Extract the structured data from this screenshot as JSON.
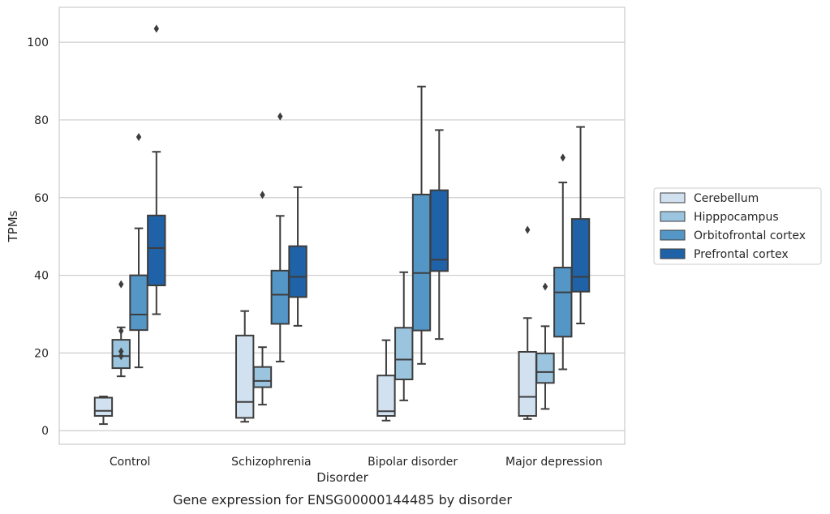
{
  "chart_data": {
    "type": "boxplot",
    "title": "Gene expression for ENSG00000144485 by disorder",
    "xlabel": "Disorder",
    "ylabel": "TPMs",
    "categories": [
      "Control",
      "Schizophrenia",
      "Bipolar disorder",
      "Major depression"
    ],
    "ylim": [
      -3.5,
      109
    ],
    "yticks": [
      0,
      20,
      40,
      60,
      80,
      100
    ],
    "grid": true,
    "legend_position": "right",
    "series": [
      {
        "name": "Cerebellum",
        "color": "#d1e1f0",
        "boxes": [
          {
            "whislo": 1.7,
            "q1": 3.8,
            "med": 5.1,
            "q3": 8.5,
            "whishi": 8.8,
            "fliers": []
          },
          {
            "whislo": 2.3,
            "q1": 3.3,
            "med": 7.4,
            "q3": 24.5,
            "whishi": 30.8,
            "fliers": []
          },
          {
            "whislo": 2.6,
            "q1": 3.8,
            "med": 5.0,
            "q3": 14.2,
            "whishi": 23.3,
            "fliers": []
          },
          {
            "whislo": 3.0,
            "q1": 3.8,
            "med": 8.7,
            "q3": 20.3,
            "whishi": 29.0,
            "fliers": [
              51.7
            ]
          }
        ]
      },
      {
        "name": "Hipppocampus",
        "color": "#9bc4de",
        "boxes": [
          {
            "whislo": 14.0,
            "q1": 16.1,
            "med": 19.2,
            "q3": 23.4,
            "whishi": 26.6,
            "fliers": [
              25.7,
              20.4,
              19.2,
              37.7
            ]
          },
          {
            "whislo": 6.7,
            "q1": 11.2,
            "med": 12.8,
            "q3": 16.4,
            "whishi": 21.5,
            "fliers": [
              60.7
            ]
          },
          {
            "whislo": 7.8,
            "q1": 13.2,
            "med": 18.3,
            "q3": 26.5,
            "whishi": 40.8,
            "fliers": []
          },
          {
            "whislo": 5.6,
            "q1": 12.3,
            "med": 15.1,
            "q3": 19.9,
            "whishi": 26.9,
            "fliers": [
              37.1
            ]
          }
        ]
      },
      {
        "name": "Orbitofrontal cortex",
        "color": "#5496c6",
        "boxes": [
          {
            "whislo": 16.3,
            "q1": 25.9,
            "med": 29.9,
            "q3": 40.0,
            "whishi": 52.1,
            "fliers": [
              75.6
            ]
          },
          {
            "whislo": 17.8,
            "q1": 27.5,
            "med": 35.0,
            "q3": 41.2,
            "whishi": 55.3,
            "fliers": [
              80.9
            ]
          },
          {
            "whislo": 17.2,
            "q1": 25.8,
            "med": 40.6,
            "q3": 60.8,
            "whishi": 88.6,
            "fliers": []
          },
          {
            "whislo": 15.8,
            "q1": 24.2,
            "med": 35.6,
            "q3": 42.0,
            "whishi": 63.9,
            "fliers": [
              70.3
            ]
          }
        ]
      },
      {
        "name": "Prefrontal cortex",
        "color": "#2062a8",
        "boxes": [
          {
            "whislo": 30.0,
            "q1": 37.4,
            "med": 47.0,
            "q3": 55.4,
            "whishi": 71.8,
            "fliers": [
              103.5
            ]
          },
          {
            "whislo": 27.0,
            "q1": 34.4,
            "med": 39.6,
            "q3": 47.5,
            "whishi": 62.7,
            "fliers": []
          },
          {
            "whislo": 23.6,
            "q1": 41.1,
            "med": 44.0,
            "q3": 61.9,
            "whishi": 77.4,
            "fliers": []
          },
          {
            "whislo": 27.6,
            "q1": 35.8,
            "med": 39.6,
            "q3": 54.5,
            "whishi": 78.2,
            "fliers": []
          }
        ]
      }
    ]
  }
}
